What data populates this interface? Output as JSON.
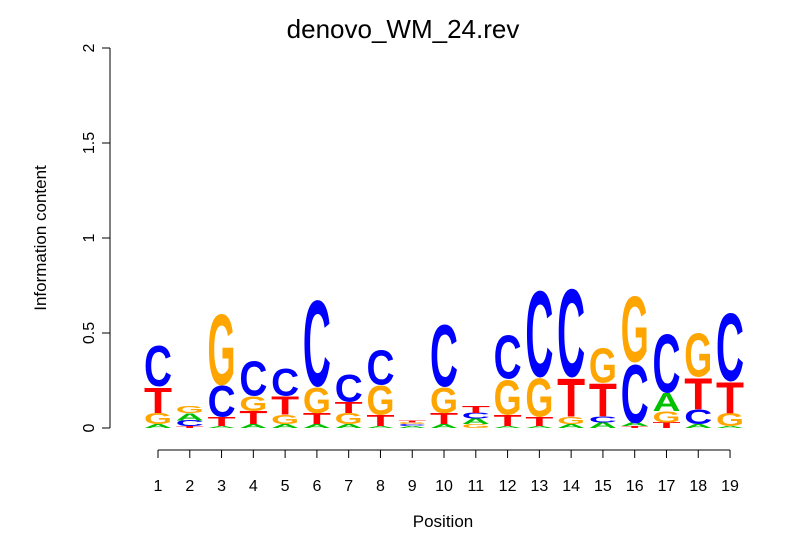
{
  "chart_data": {
    "type": "logo",
    "title": "denovo_WM_24.rev",
    "xlabel": "Position",
    "ylabel": "Information content",
    "categories": [
      "1",
      "2",
      "3",
      "4",
      "5",
      "6",
      "7",
      "8",
      "9",
      "10",
      "11",
      "12",
      "13",
      "14",
      "15",
      "16",
      "17",
      "18",
      "19"
    ],
    "ylim": [
      0,
      2
    ],
    "yticks": [
      0,
      0.5,
      1,
      1.5,
      2
    ],
    "series": [
      {
        "name": "A",
        "color": "#00c000",
        "values": [
          0.02,
          0.04,
          0.01,
          0.02,
          0.02,
          0.02,
          0.02,
          0.01,
          0.01,
          0.02,
          0.03,
          0.01,
          0.01,
          0.02,
          0.03,
          0.02,
          0.1,
          0.02,
          0.01
        ]
      },
      {
        "name": "C",
        "color": "#0000ff",
        "values": [
          0.22,
          0.03,
          0.17,
          0.19,
          0.15,
          0.47,
          0.15,
          0.19,
          0.01,
          0.34,
          0.03,
          0.24,
          0.47,
          0.48,
          0.03,
          0.32,
          0.32,
          0.08,
          0.37
        ]
      },
      {
        "name": "G",
        "color": "#ffa500",
        "values": [
          0.06,
          0.04,
          0.39,
          0.08,
          0.05,
          0.14,
          0.06,
          0.16,
          0.01,
          0.14,
          0.02,
          0.19,
          0.21,
          0.04,
          0.19,
          0.36,
          0.06,
          0.24,
          0.07
        ]
      },
      {
        "name": "T",
        "color": "#ff0000",
        "values": [
          0.14,
          0.01,
          0.05,
          0.07,
          0.1,
          0.06,
          0.06,
          0.06,
          0.01,
          0.06,
          0.04,
          0.06,
          0.05,
          0.21,
          0.18,
          0.01,
          0.03,
          0.17,
          0.17
        ]
      }
    ]
  }
}
